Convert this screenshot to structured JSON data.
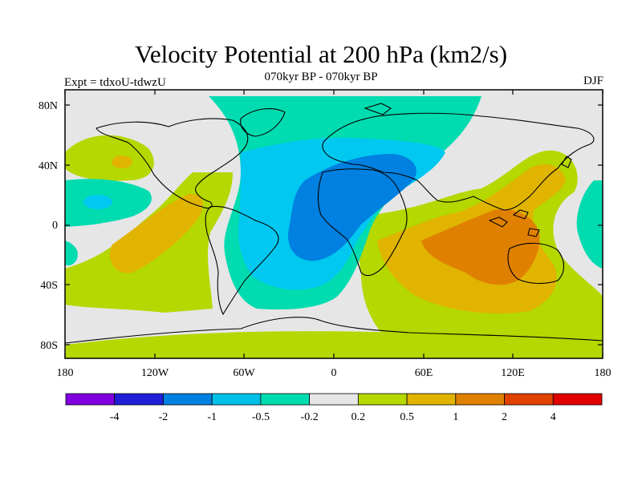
{
  "figure": {
    "title": "Velocity Potential at 200 hPa (km2/s)",
    "subtitle": "070kyr BP - 070kyr BP",
    "left_label": "Expt = tdxoU-tdwzU",
    "right_label": "DJF"
  },
  "map": {
    "projection": "cylindrical equidistant",
    "lon_ticks": [
      "180",
      "120W",
      "60W",
      "0",
      "60E",
      "120E",
      "180"
    ],
    "lat_ticks": [
      "80N",
      "40N",
      "0",
      "40S",
      "80S"
    ],
    "background_color": "#e6e6e6",
    "field_regions": [
      {
        "level": "-0.5",
        "color": "#00c8f0",
        "desc": "Atlantic-Africa negative lobe"
      },
      {
        "level": "-1",
        "color": "#0080e0",
        "desc": "Atlantic-Africa core"
      },
      {
        "level": "-0.2",
        "color": "#00dcb0",
        "desc": "North Atlantic / Arctic band"
      },
      {
        "level": "0.5",
        "color": "#e0b400",
        "desc": "Maritime continent / Indian Ocean"
      },
      {
        "level": "1",
        "color": "#e08000",
        "desc": "Indonesia-Australia core"
      },
      {
        "level": "0.2",
        "color": "#b4d800",
        "desc": "Southern Ocean and Pacific positive"
      }
    ]
  },
  "colorbar": {
    "colors": [
      "#8000e0",
      "#2020d8",
      "#0080e0",
      "#00c0e8",
      "#00dcb0",
      "#e6e6e6",
      "#b4d800",
      "#e0b400",
      "#e08000",
      "#e04000",
      "#e00000"
    ],
    "labels": [
      "-4",
      "-2",
      "-1",
      "-0.5",
      "-0.2",
      "0.2",
      "0.5",
      "1",
      "2",
      "4"
    ]
  }
}
